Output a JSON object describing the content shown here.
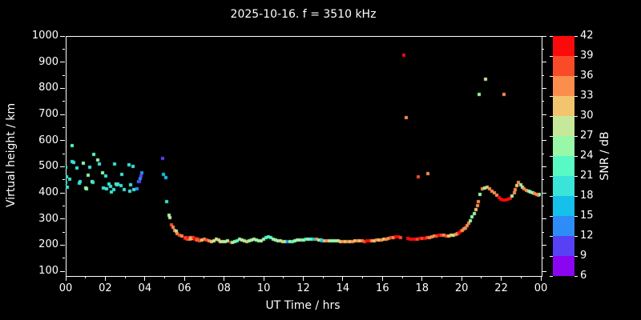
{
  "chart_data": {
    "type": "scatter",
    "title": "2025-10-16. f = 3510 kHz",
    "xlabel": "UT Time / hrs",
    "ylabel": "Virtual height / km",
    "xlim": [
      0,
      24
    ],
    "ylim": [
      85,
      1000
    ],
    "x_ticks": [
      0,
      2,
      4,
      6,
      8,
      10,
      12,
      14,
      16,
      18,
      20,
      22,
      24
    ],
    "x_tick_labels": [
      "00",
      "02",
      "04",
      "06",
      "08",
      "10",
      "12",
      "14",
      "16",
      "18",
      "20",
      "22",
      "00"
    ],
    "x_minor_ticks": [
      1,
      3,
      5,
      7,
      9,
      11,
      13,
      15,
      17,
      19,
      21,
      23
    ],
    "y_ticks": [
      100,
      200,
      300,
      400,
      500,
      600,
      700,
      800,
      900,
      1000
    ],
    "y_minor_ticks": [
      150,
      250,
      350,
      450,
      550,
      650,
      750,
      850,
      950
    ],
    "background_color": "#000000",
    "text_color": "#ffffff",
    "marker": "square",
    "marker_size_px": 4,
    "grid": false,
    "colorbar": {
      "label": "SNR / dB",
      "range": [
        6,
        42
      ],
      "ticks": [
        6,
        9,
        12,
        15,
        18,
        21,
        24,
        27,
        30,
        33,
        36,
        39,
        42
      ],
      "segment_colors": [
        "#8A05F0",
        "#5642F4",
        "#2E8CF6",
        "#15C0EA",
        "#3AE4D8",
        "#58F9C5",
        "#98F8A8",
        "#C6E89A",
        "#F2C46D",
        "#FB8D4D",
        "#FA4B28",
        "#FA0A0A"
      ]
    },
    "points_format": [
      "ut_hours",
      "virtual_height_km",
      "snr_db"
    ],
    "points": [
      [
        0.0,
        497,
        19
      ],
      [
        0.02,
        441,
        19
      ],
      [
        0.06,
        460,
        19
      ],
      [
        0.08,
        422,
        19
      ],
      [
        0.19,
        452,
        19
      ],
      [
        0.31,
        519,
        19
      ],
      [
        0.33,
        580,
        22
      ],
      [
        0.39,
        516,
        19
      ],
      [
        0.55,
        495,
        19
      ],
      [
        0.69,
        437,
        19
      ],
      [
        0.72,
        444,
        19
      ],
      [
        0.88,
        513,
        25
      ],
      [
        1.02,
        418,
        25
      ],
      [
        1.06,
        416,
        25
      ],
      [
        1.13,
        466,
        25
      ],
      [
        1.2,
        499,
        19
      ],
      [
        1.34,
        444,
        25
      ],
      [
        1.38,
        441,
        19
      ],
      [
        1.43,
        548,
        22
      ],
      [
        1.6,
        527,
        25
      ],
      [
        1.71,
        511,
        19
      ],
      [
        1.87,
        477,
        25
      ],
      [
        1.9,
        418,
        19
      ],
      [
        2.04,
        465,
        19
      ],
      [
        2.07,
        417,
        19
      ],
      [
        2.19,
        435,
        19
      ],
      [
        2.28,
        425,
        19
      ],
      [
        2.31,
        404,
        19
      ],
      [
        2.43,
        412,
        19
      ],
      [
        2.48,
        509,
        19
      ],
      [
        2.55,
        433,
        25
      ],
      [
        2.6,
        430,
        19
      ],
      [
        2.64,
        435,
        19
      ],
      [
        2.79,
        429,
        19
      ],
      [
        2.85,
        472,
        19
      ],
      [
        2.96,
        412,
        19
      ],
      [
        3.19,
        507,
        19
      ],
      [
        3.24,
        406,
        19
      ],
      [
        3.27,
        430,
        19
      ],
      [
        3.39,
        501,
        19
      ],
      [
        3.44,
        412,
        19
      ],
      [
        3.6,
        415,
        13
      ],
      [
        3.68,
        444,
        13
      ],
      [
        3.72,
        443,
        10
      ],
      [
        3.76,
        456,
        13
      ],
      [
        3.81,
        465,
        10
      ],
      [
        3.86,
        478,
        13
      ],
      [
        4.9,
        531,
        10
      ],
      [
        4.94,
        471,
        16
      ],
      [
        5.06,
        459,
        16
      ],
      [
        5.11,
        368,
        19
      ],
      [
        5.21,
        315,
        25
      ],
      [
        5.27,
        306,
        28
      ],
      [
        5.36,
        279,
        37
      ],
      [
        5.44,
        269,
        34
      ],
      [
        5.52,
        257,
        34
      ],
      [
        5.57,
        252,
        28
      ],
      [
        5.63,
        245,
        34
      ],
      [
        5.76,
        239,
        37
      ],
      [
        5.87,
        235,
        34
      ],
      [
        6.03,
        226,
        40
      ],
      [
        6.09,
        229,
        37
      ],
      [
        6.15,
        224,
        37
      ],
      [
        6.21,
        230,
        40
      ],
      [
        6.27,
        222,
        34
      ],
      [
        6.33,
        228,
        34
      ],
      [
        6.39,
        225,
        28
      ],
      [
        6.45,
        229,
        37
      ],
      [
        6.51,
        224,
        40
      ],
      [
        6.57,
        226,
        40
      ],
      [
        6.63,
        220,
        34
      ],
      [
        6.69,
        224,
        37
      ],
      [
        6.75,
        218,
        37
      ],
      [
        6.87,
        220,
        31
      ],
      [
        6.99,
        222,
        34
      ],
      [
        7.11,
        219,
        37
      ],
      [
        7.23,
        216,
        34
      ],
      [
        7.35,
        214,
        31
      ],
      [
        7.47,
        217,
        28
      ],
      [
        7.59,
        224,
        28
      ],
      [
        7.71,
        219,
        31
      ],
      [
        7.83,
        214,
        28
      ],
      [
        7.95,
        213,
        28
      ],
      [
        8.07,
        213,
        28
      ],
      [
        8.19,
        216,
        25
      ],
      [
        8.35,
        211,
        40
      ],
      [
        8.43,
        210,
        25
      ],
      [
        8.55,
        213,
        25
      ],
      [
        8.67,
        218,
        22
      ],
      [
        8.79,
        222,
        25
      ],
      [
        8.91,
        220,
        28
      ],
      [
        9.03,
        216,
        25
      ],
      [
        9.15,
        213,
        31
      ],
      [
        9.27,
        217,
        25
      ],
      [
        9.39,
        220,
        25
      ],
      [
        9.51,
        222,
        28
      ],
      [
        9.63,
        219,
        25
      ],
      [
        9.75,
        216,
        25
      ],
      [
        9.87,
        218,
        28
      ],
      [
        10.0,
        222,
        25
      ],
      [
        10.12,
        230,
        22
      ],
      [
        10.24,
        233,
        22
      ],
      [
        10.36,
        230,
        22
      ],
      [
        10.48,
        224,
        25
      ],
      [
        10.6,
        220,
        25
      ],
      [
        10.72,
        218,
        28
      ],
      [
        10.84,
        216,
        25
      ],
      [
        10.96,
        214,
        31
      ],
      [
        11.08,
        213,
        25
      ],
      [
        11.2,
        212,
        13
      ],
      [
        11.32,
        213,
        25
      ],
      [
        11.44,
        215,
        22
      ],
      [
        11.56,
        217,
        25
      ],
      [
        11.68,
        219,
        25
      ],
      [
        11.8,
        220,
        28
      ],
      [
        11.92,
        221,
        22
      ],
      [
        12.04,
        221,
        25
      ],
      [
        12.16,
        222,
        22
      ],
      [
        12.28,
        223,
        25
      ],
      [
        12.4,
        224,
        22
      ],
      [
        12.55,
        224,
        16
      ],
      [
        12.67,
        222,
        34
      ],
      [
        12.79,
        220,
        25
      ],
      [
        12.91,
        219,
        22
      ],
      [
        12.96,
        218,
        16
      ],
      [
        13.06,
        218,
        31
      ],
      [
        13.18,
        217,
        34
      ],
      [
        13.3,
        216,
        28
      ],
      [
        13.42,
        217,
        25
      ],
      [
        13.54,
        218,
        25
      ],
      [
        13.66,
        218,
        25
      ],
      [
        13.78,
        217,
        28
      ],
      [
        13.9,
        215,
        31
      ],
      [
        14.02,
        213,
        34
      ],
      [
        14.14,
        212,
        31
      ],
      [
        14.26,
        212,
        34
      ],
      [
        14.38,
        213,
        31
      ],
      [
        14.5,
        215,
        34
      ],
      [
        14.62,
        216,
        31
      ],
      [
        14.74,
        217,
        34
      ],
      [
        14.86,
        217,
        31
      ],
      [
        14.98,
        216,
        34
      ],
      [
        15.1,
        215,
        37
      ],
      [
        15.22,
        216,
        40
      ],
      [
        15.34,
        216,
        40
      ],
      [
        15.46,
        217,
        34
      ],
      [
        15.58,
        218,
        31
      ],
      [
        15.7,
        219,
        34
      ],
      [
        15.82,
        220,
        31
      ],
      [
        15.94,
        221,
        34
      ],
      [
        16.06,
        222,
        31
      ],
      [
        16.18,
        224,
        34
      ],
      [
        16.3,
        226,
        34
      ],
      [
        16.42,
        228,
        37
      ],
      [
        16.54,
        230,
        34
      ],
      [
        16.66,
        231,
        40
      ],
      [
        16.78,
        231,
        40
      ],
      [
        16.9,
        230,
        37
      ],
      [
        17.09,
        926,
        40
      ],
      [
        17.22,
        687,
        34
      ],
      [
        17.3,
        225,
        40
      ],
      [
        17.42,
        224,
        40
      ],
      [
        17.54,
        223,
        40
      ],
      [
        17.66,
        224,
        40
      ],
      [
        17.78,
        224,
        37
      ],
      [
        17.8,
        462,
        37
      ],
      [
        17.9,
        225,
        40
      ],
      [
        18.02,
        226,
        37
      ],
      [
        18.14,
        227,
        40
      ],
      [
        18.26,
        228,
        37
      ],
      [
        18.31,
        474,
        34
      ],
      [
        18.38,
        230,
        34
      ],
      [
        18.5,
        232,
        34
      ],
      [
        18.62,
        234,
        34
      ],
      [
        18.74,
        236,
        37
      ],
      [
        18.86,
        238,
        40
      ],
      [
        18.98,
        238,
        37
      ],
      [
        19.1,
        237,
        34
      ],
      [
        19.22,
        236,
        37
      ],
      [
        19.34,
        236,
        31
      ],
      [
        19.46,
        237,
        31
      ],
      [
        19.58,
        239,
        28
      ],
      [
        19.7,
        242,
        34
      ],
      [
        19.78,
        245,
        34
      ],
      [
        19.86,
        248,
        40
      ],
      [
        19.94,
        252,
        40
      ],
      [
        20.02,
        256,
        34
      ],
      [
        20.1,
        261,
        34
      ],
      [
        20.18,
        267,
        34
      ],
      [
        20.26,
        274,
        34
      ],
      [
        20.34,
        283,
        34
      ],
      [
        20.42,
        293,
        25
      ],
      [
        20.53,
        309,
        25
      ],
      [
        20.63,
        321,
        25
      ],
      [
        20.71,
        336,
        31
      ],
      [
        20.79,
        352,
        34
      ],
      [
        20.86,
        368,
        34
      ],
      [
        20.89,
        776,
        25
      ],
      [
        20.93,
        394,
        25
      ],
      [
        21.05,
        417,
        34
      ],
      [
        21.17,
        420,
        25
      ],
      [
        21.21,
        835,
        28
      ],
      [
        21.3,
        423,
        31
      ],
      [
        21.42,
        416,
        34
      ],
      [
        21.54,
        407,
        34
      ],
      [
        21.66,
        400,
        34
      ],
      [
        21.78,
        391,
        34
      ],
      [
        21.89,
        381,
        40
      ],
      [
        21.98,
        376,
        40
      ],
      [
        22.1,
        374,
        40
      ],
      [
        22.14,
        776,
        34
      ],
      [
        22.22,
        374,
        40
      ],
      [
        22.34,
        375,
        40
      ],
      [
        22.46,
        380,
        40
      ],
      [
        22.55,
        388,
        25
      ],
      [
        22.65,
        400,
        34
      ],
      [
        22.72,
        413,
        34
      ],
      [
        22.79,
        429,
        31
      ],
      [
        22.87,
        441,
        34
      ],
      [
        22.97,
        430,
        25
      ],
      [
        23.07,
        421,
        28
      ],
      [
        23.17,
        414,
        34
      ],
      [
        23.27,
        409,
        34
      ],
      [
        23.38,
        406,
        25
      ],
      [
        23.48,
        403,
        25
      ],
      [
        23.58,
        401,
        25
      ],
      [
        23.68,
        397,
        34
      ],
      [
        23.79,
        394,
        34
      ],
      [
        23.88,
        391,
        34
      ],
      [
        23.97,
        393,
        25
      ]
    ]
  }
}
